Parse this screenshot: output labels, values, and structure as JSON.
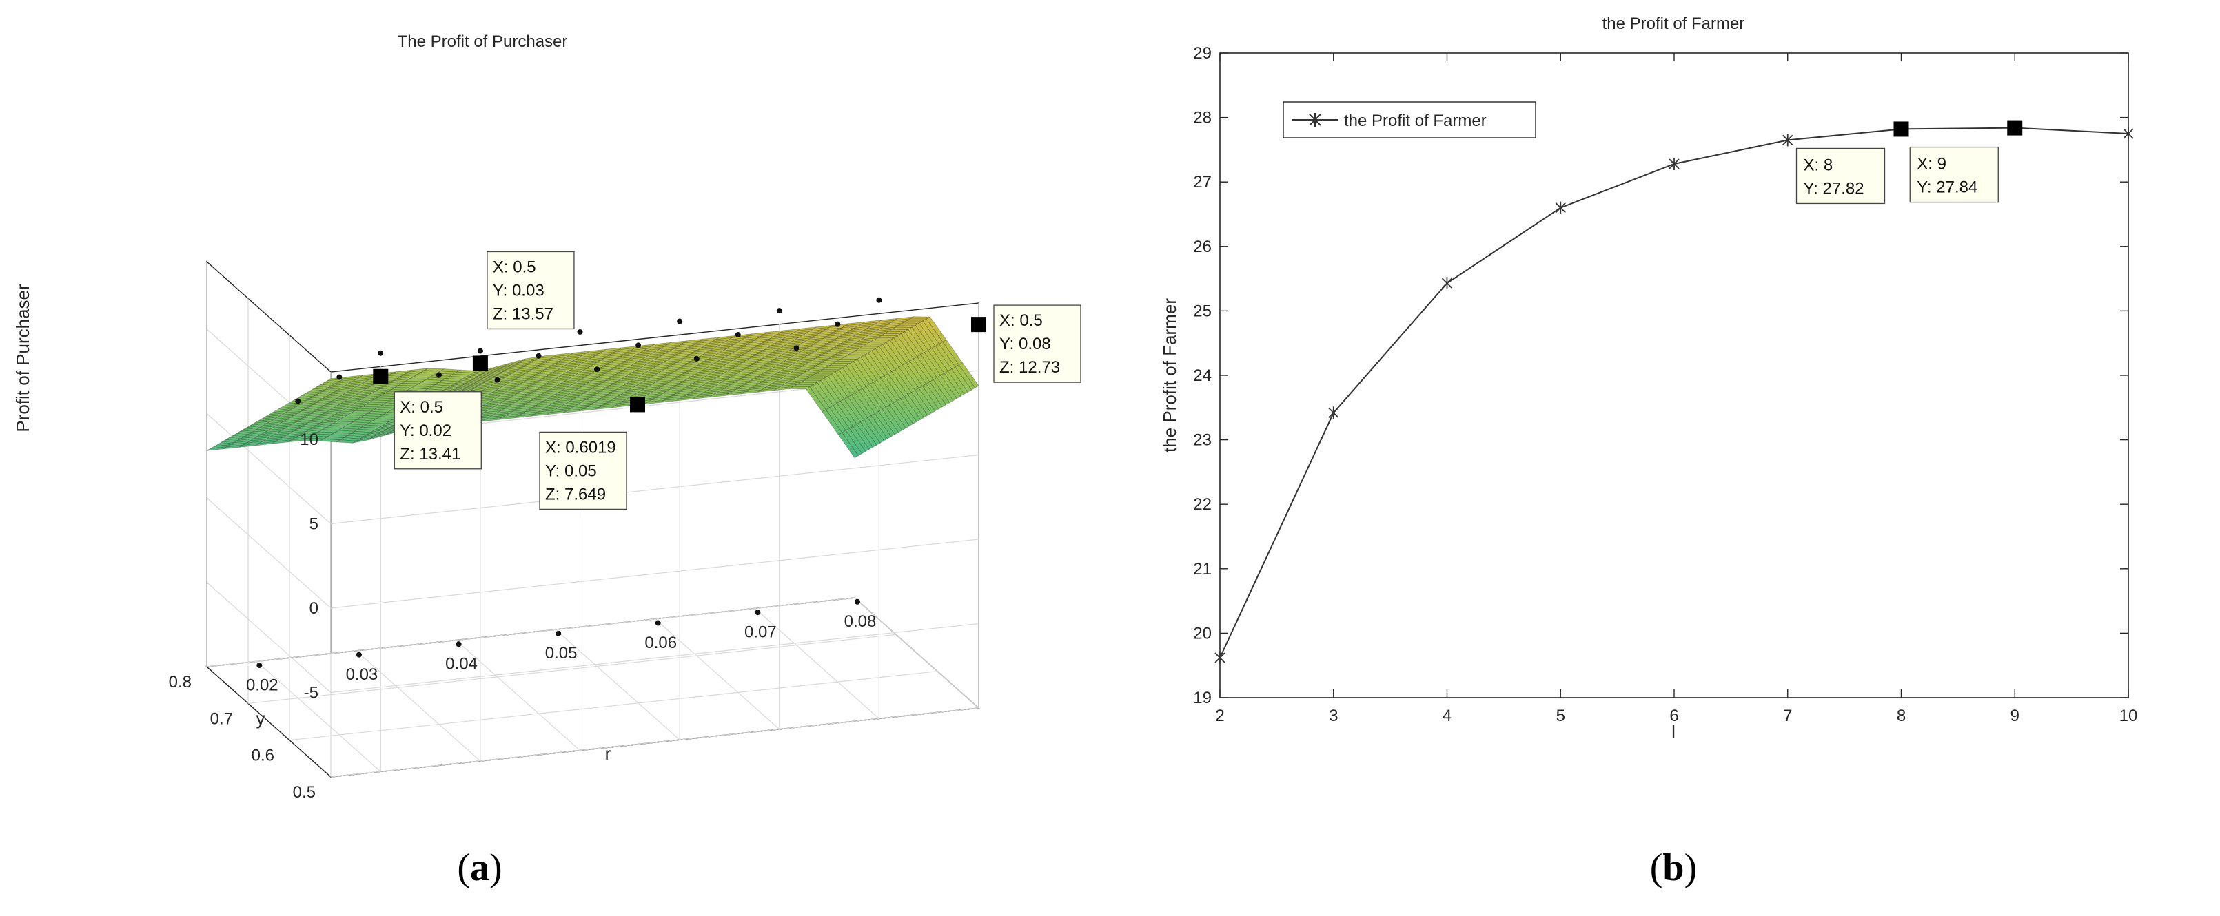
{
  "chart_data": [
    {
      "type": "surface",
      "title": "The Profit of Purchaser",
      "xlabel": "r",
      "ylabel": "y",
      "zlabel": "Profit of Purchaser",
      "x_ticks": [
        "0.02",
        "0.03",
        "0.04",
        "0.05",
        "0.06",
        "0.07",
        "0.08"
      ],
      "y_ticks": [
        "0.5",
        "0.6",
        "0.7",
        "0.8"
      ],
      "z_ticks": [
        "-5",
        "0",
        "5",
        "10"
      ],
      "xlim": [
        0.015,
        0.08
      ],
      "ylim": [
        0.5,
        0.8
      ],
      "zlim": [
        -10,
        14
      ],
      "grid": true,
      "colormap": [
        "#3e26a8",
        "#2e64f6",
        "#1a9ede",
        "#2ab7a8",
        "#75c45f",
        "#e0b941",
        "#f9e219"
      ],
      "datatips": [
        {
          "x": "0.5",
          "y": "0.03",
          "z": "13.57",
          "r": 0.03,
          "yv": 0.5,
          "zv": 13.57
        },
        {
          "x": "0.5",
          "y": "0.08",
          "z": "12.73",
          "r": 0.08,
          "yv": 0.5,
          "zv": 12.73
        },
        {
          "x": "0.5",
          "y": "0.02",
          "z": "13.41",
          "r": 0.02,
          "yv": 0.5,
          "zv": 13.41
        },
        {
          "x": "0.6019",
          "y": "0.05",
          "z": "7.649",
          "r": 0.05,
          "yv": 0.6019,
          "zv": 7.649
        }
      ],
      "caption": "a"
    },
    {
      "type": "line",
      "title": "the Profit of Farmer",
      "xlabel": "l",
      "ylabel": "the Profit of Farmer",
      "x": [
        2,
        3,
        4,
        5,
        6,
        7,
        8,
        9,
        10
      ],
      "series": [
        {
          "name": "the Profit of Farmer",
          "values": [
            19.62,
            23.42,
            25.43,
            26.6,
            27.28,
            27.65,
            27.82,
            27.84,
            27.75
          ]
        }
      ],
      "xlim": [
        2,
        10
      ],
      "ylim": [
        19,
        29
      ],
      "x_ticks": [
        "2",
        "3",
        "4",
        "5",
        "6",
        "7",
        "8",
        "9",
        "10"
      ],
      "y_ticks": [
        "19",
        "20",
        "21",
        "22",
        "23",
        "24",
        "25",
        "26",
        "27",
        "28",
        "29"
      ],
      "legend": "top-left",
      "color": "#333333",
      "datatips": [
        {
          "x": "8",
          "y": "27.82",
          "xv": 8,
          "yv": 27.82
        },
        {
          "x": "9",
          "y": "27.84",
          "xv": 9,
          "yv": 27.84
        }
      ],
      "caption": "b"
    }
  ]
}
